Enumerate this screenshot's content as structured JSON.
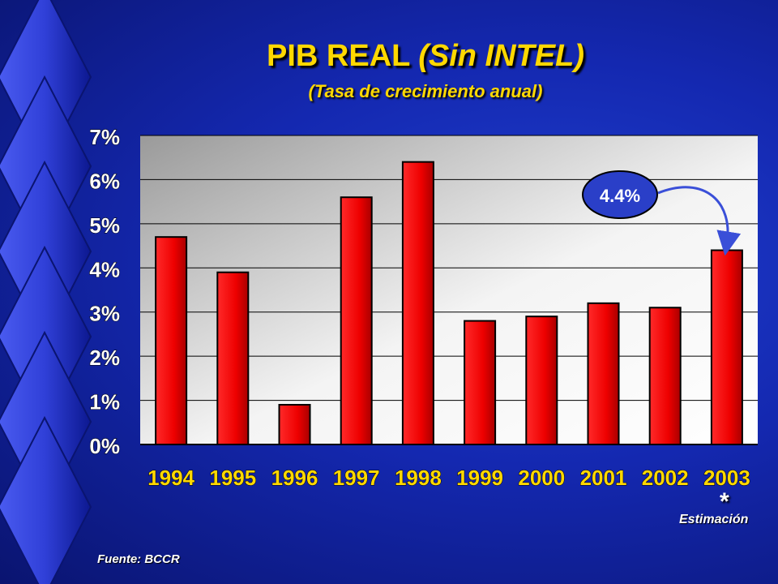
{
  "slide": {
    "title_main": "PIB REAL",
    "title_paren": "(Sin INTEL)",
    "subtitle": "(Tasa de crecimiento anual)",
    "star": "*",
    "estimate_note": "Estimación",
    "source": "Fuente: BCCR",
    "callout": "4.4%"
  },
  "chart_data": {
    "type": "bar",
    "title": "PIB REAL (Sin INTEL)",
    "subtitle": "(Tasa de crecimiento anual)",
    "categories": [
      "1994",
      "1995",
      "1996",
      "1997",
      "1998",
      "1999",
      "2000",
      "2001",
      "2002",
      "2003"
    ],
    "values": [
      4.7,
      3.9,
      0.9,
      5.6,
      6.4,
      2.8,
      2.9,
      3.2,
      3.1,
      4.4
    ],
    "ylim": [
      0,
      7
    ],
    "yticks": [
      "0%",
      "1%",
      "2%",
      "3%",
      "4%",
      "5%",
      "6%",
      "7%"
    ],
    "grid": true,
    "colors": {
      "bar": "#ee0000",
      "callout": "#2a3fc8",
      "title": "#ffd800"
    }
  }
}
